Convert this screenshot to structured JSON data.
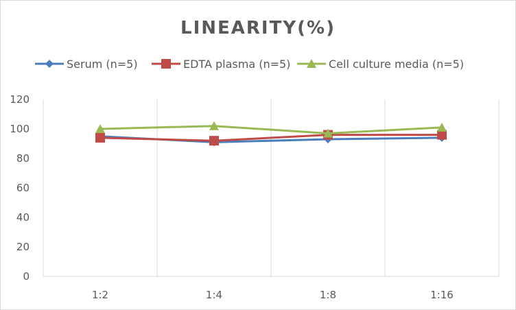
{
  "chart_data": {
    "type": "line",
    "title": "LINEARITY(%)",
    "categories": [
      "1:2",
      "1:4",
      "1:8",
      "1:16"
    ],
    "ylim": [
      0,
      120
    ],
    "yticks": [
      0,
      20,
      40,
      60,
      80,
      100,
      120
    ],
    "grid": "vertical",
    "legend_position": "top",
    "series": [
      {
        "name": "Serum (n=5)",
        "color": "#4a7ebb",
        "marker": "diamond",
        "values": [
          95,
          91,
          93,
          94
        ]
      },
      {
        "name": "EDTA plasma (n=5)",
        "color": "#be4b48",
        "marker": "square",
        "values": [
          94,
          92,
          96,
          96
        ]
      },
      {
        "name": "Cell culture media (n=5)",
        "color": "#98b954",
        "marker": "triangle",
        "values": [
          100,
          102,
          97,
          101
        ]
      }
    ]
  }
}
